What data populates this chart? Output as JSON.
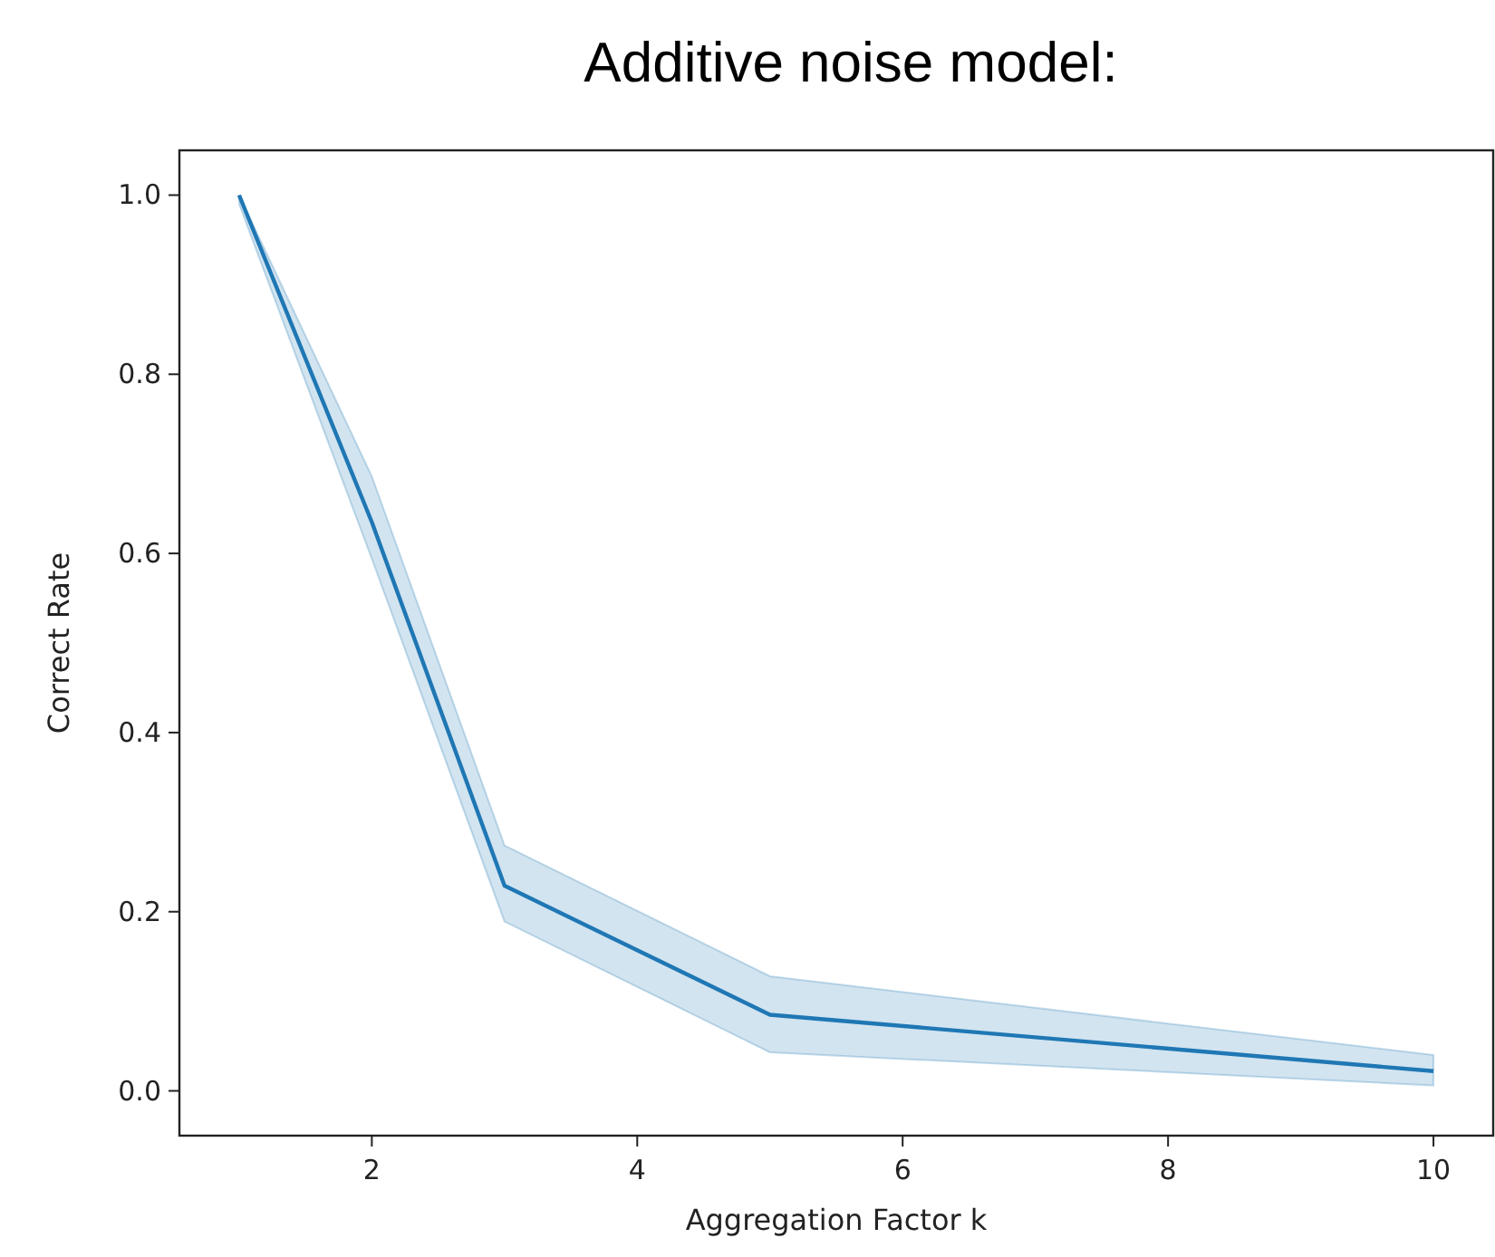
{
  "chart_data": {
    "type": "line",
    "title": "Additive noise model:",
    "xlabel": "Aggregation Factor k",
    "ylabel": "Correct Rate",
    "x": [
      1,
      2,
      3,
      5,
      10
    ],
    "series": [
      {
        "color": "#1f77b4",
        "values": [
          1.0,
          0.635,
          0.229,
          0.085,
          0.022
        ],
        "lower": [
          0.99,
          0.594,
          0.189,
          0.043,
          0.006
        ],
        "upper": [
          1.0,
          0.686,
          0.274,
          0.128,
          0.04
        ]
      }
    ],
    "xlim": [
      0.55,
      10.45
    ],
    "ylim": [
      -0.05,
      1.05
    ],
    "xticks": [
      2,
      4,
      6,
      8,
      10
    ],
    "yticks": [
      {
        "value": 0,
        "label": "0.0"
      },
      {
        "value": 0.2,
        "label": "0.2"
      },
      {
        "value": 0.4,
        "label": "0.4"
      },
      {
        "value": 0.6,
        "label": "0.6"
      },
      {
        "value": 0.8,
        "label": "0.8"
      },
      {
        "value": 1,
        "label": "1.0"
      }
    ],
    "grid": false
  }
}
